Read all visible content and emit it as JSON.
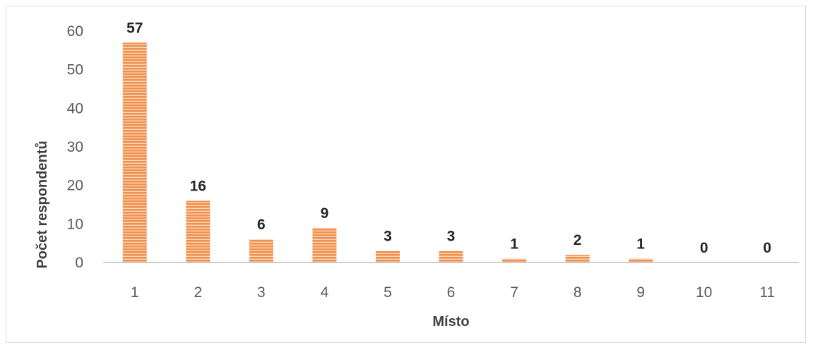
{
  "chart_data": {
    "type": "bar",
    "title": "",
    "xlabel": "Místo",
    "ylabel": "Počet respondentů",
    "categories": [
      "1",
      "2",
      "3",
      "4",
      "5",
      "6",
      "7",
      "8",
      "9",
      "10",
      "11"
    ],
    "values": [
      57,
      16,
      6,
      9,
      3,
      3,
      1,
      2,
      1,
      0,
      0
    ],
    "data_labels": [
      "57",
      "16",
      "6",
      "9",
      "3",
      "3",
      "1",
      "2",
      "1",
      "0",
      "0"
    ],
    "yticks": [
      "0",
      "10",
      "20",
      "30",
      "40",
      "50",
      "60"
    ],
    "ylim": [
      0,
      60
    ],
    "grid": false,
    "legend": "none",
    "bar_color": "#f0914d",
    "bar_stripe_color": "#fbd6bc",
    "bar_pattern": "horizontal-stripes"
  }
}
